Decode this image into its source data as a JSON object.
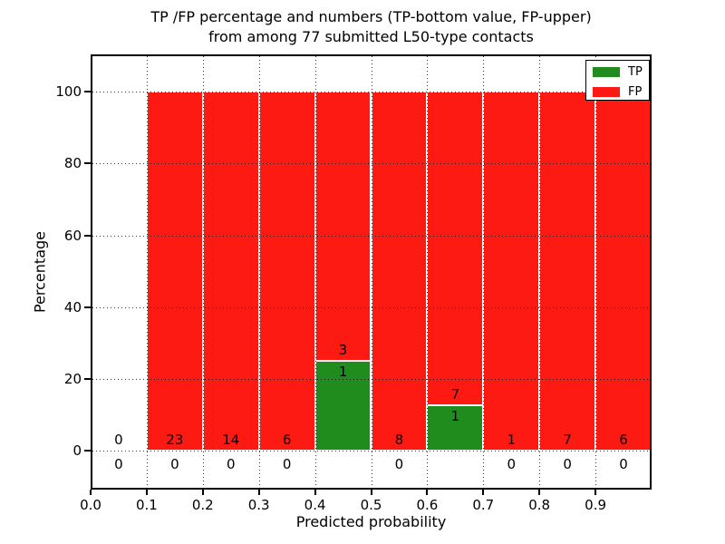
{
  "chart_data": {
    "type": "bar",
    "stacked": true,
    "title_lines": [
      "TP /FP percentage and numbers (TP-bottom value, FP-upper)",
      "from among 77 submitted L50-type contacts"
    ],
    "xlabel": "Predicted probability",
    "ylabel": "Percentage",
    "total_contacts": 77,
    "annotation_rule": "TP-bottom value, FP-upper",
    "xlim": [
      0.0,
      1.0
    ],
    "ylim": [
      -11,
      110.5
    ],
    "bin_width": 0.1,
    "xticks": [
      0.0,
      0.1,
      0.2,
      0.3,
      0.4,
      0.5,
      0.6,
      0.7,
      0.8,
      0.9
    ],
    "xtick_labels": [
      "0.0",
      "0.1",
      "0.2",
      "0.3",
      "0.4",
      "0.5",
      "0.6",
      "0.7",
      "0.8",
      "0.9"
    ],
    "yticks": [
      0,
      20,
      40,
      60,
      80,
      100
    ],
    "ytick_labels": [
      "0",
      "20",
      "40",
      "60",
      "80",
      "100"
    ],
    "categories": [
      "0.0-0.1",
      "0.1-0.2",
      "0.2-0.3",
      "0.3-0.4",
      "0.4-0.5",
      "0.5-0.6",
      "0.6-0.7",
      "0.7-0.8",
      "0.8-0.9",
      "0.9-1.0"
    ],
    "series": [
      {
        "name": "TP",
        "color": "#218c1e",
        "counts": [
          0,
          0,
          0,
          0,
          1,
          0,
          1,
          0,
          0,
          0
        ],
        "pct_values": [
          0,
          0,
          0,
          0,
          25,
          0,
          12.5,
          0,
          0,
          0
        ]
      },
      {
        "name": "FP",
        "color": "#fc1a13",
        "counts": [
          0,
          23,
          14,
          6,
          3,
          8,
          7,
          1,
          7,
          6
        ],
        "pct_values": [
          0,
          100,
          100,
          100,
          75,
          100,
          87.5,
          100,
          100,
          100
        ]
      }
    ],
    "legend": {
      "position": "upper right",
      "entries": [
        {
          "label": "TP",
          "color": "#218c1e"
        },
        {
          "label": "FP",
          "color": "#fc1a13"
        }
      ]
    },
    "grid": {
      "style": "dotted",
      "color": "#000000",
      "above_bars": true
    }
  }
}
